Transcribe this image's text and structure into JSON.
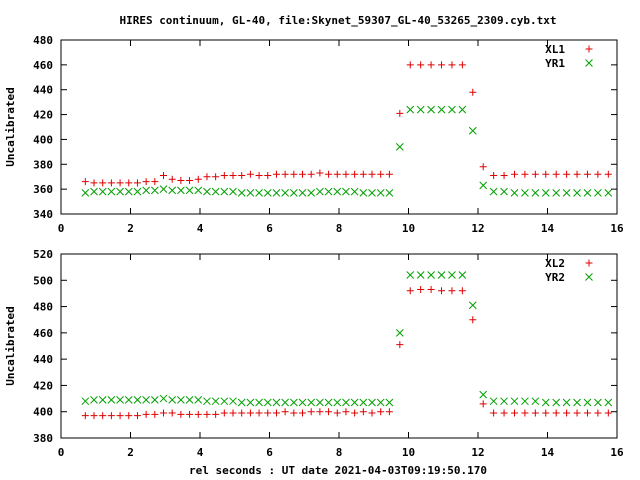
{
  "title": "HIRES continuum, GL-40, file:Skynet_59307_GL-40_53265_2309.cyb.txt",
  "xlabel": "rel seconds : UT date 2021-04-03T09:19:50.170",
  "colors": {
    "series1": "#e00000",
    "series2": "#00a000"
  },
  "chart_data": [
    {
      "type": "scatter",
      "ylabel": "Uncalibrated",
      "xlim": [
        0,
        16
      ],
      "ylim": [
        340,
        480
      ],
      "xticks": [
        0,
        2,
        4,
        6,
        8,
        10,
        12,
        14,
        16
      ],
      "yticks": [
        340,
        360,
        380,
        400,
        420,
        440,
        460,
        480
      ],
      "legend_position": "top-right",
      "x": [
        0.7,
        0.95,
        1.2,
        1.45,
        1.7,
        1.95,
        2.2,
        2.45,
        2.7,
        2.95,
        3.2,
        3.45,
        3.7,
        3.95,
        4.2,
        4.45,
        4.7,
        4.95,
        5.2,
        5.45,
        5.7,
        5.95,
        6.2,
        6.45,
        6.7,
        6.95,
        7.2,
        7.45,
        7.7,
        7.95,
        8.2,
        8.45,
        8.7,
        8.95,
        9.2,
        9.45,
        9.75,
        10.05,
        10.35,
        10.65,
        10.95,
        11.25,
        11.55,
        11.85,
        12.15,
        12.45,
        12.75,
        13.05,
        13.35,
        13.65,
        13.95,
        14.25,
        14.55,
        14.85,
        15.15,
        15.45,
        15.75
      ],
      "series": [
        {
          "name": "XL1",
          "marker": "plus",
          "values": [
            366,
            365,
            365,
            365,
            365,
            365,
            365,
            366,
            366,
            371,
            368,
            367,
            367,
            368,
            370,
            370,
            371,
            371,
            371,
            372,
            371,
            371,
            372,
            372,
            372,
            372,
            372,
            373,
            372,
            372,
            372,
            372,
            372,
            372,
            372,
            372,
            421,
            460,
            460,
            460,
            460,
            460,
            460,
            438,
            378,
            371,
            371,
            372,
            372,
            372,
            372,
            372,
            372,
            372,
            372,
            372,
            372
          ]
        },
        {
          "name": "YR1",
          "marker": "cross",
          "values": [
            357,
            358,
            358,
            358,
            358,
            358,
            358,
            359,
            359,
            360,
            359,
            359,
            359,
            359,
            358,
            358,
            358,
            358,
            357,
            357,
            357,
            357,
            357,
            357,
            357,
            357,
            357,
            358,
            358,
            358,
            358,
            358,
            357,
            357,
            357,
            357,
            394,
            424,
            424,
            424,
            424,
            424,
            424,
            407,
            363,
            358,
            358,
            357,
            357,
            357,
            357,
            357,
            357,
            357,
            357,
            357,
            357
          ]
        }
      ]
    },
    {
      "type": "scatter",
      "ylabel": "Uncalibrated",
      "xlim": [
        0,
        16
      ],
      "ylim": [
        380,
        520
      ],
      "xticks": [
        0,
        2,
        4,
        6,
        8,
        10,
        12,
        14,
        16
      ],
      "yticks": [
        380,
        400,
        420,
        440,
        460,
        480,
        500,
        520
      ],
      "legend_position": "top-right",
      "x": [
        0.7,
        0.95,
        1.2,
        1.45,
        1.7,
        1.95,
        2.2,
        2.45,
        2.7,
        2.95,
        3.2,
        3.45,
        3.7,
        3.95,
        4.2,
        4.45,
        4.7,
        4.95,
        5.2,
        5.45,
        5.7,
        5.95,
        6.2,
        6.45,
        6.7,
        6.95,
        7.2,
        7.45,
        7.7,
        7.95,
        8.2,
        8.45,
        8.7,
        8.95,
        9.2,
        9.45,
        9.75,
        10.05,
        10.35,
        10.65,
        10.95,
        11.25,
        11.55,
        11.85,
        12.15,
        12.45,
        12.75,
        13.05,
        13.35,
        13.65,
        13.95,
        14.25,
        14.55,
        14.85,
        15.15,
        15.45,
        15.75
      ],
      "series": [
        {
          "name": "XL2",
          "marker": "plus",
          "values": [
            397,
            397,
            397,
            397,
            397,
            397,
            397,
            398,
            398,
            399,
            399,
            398,
            398,
            398,
            398,
            398,
            399,
            399,
            399,
            399,
            399,
            399,
            399,
            400,
            399,
            399,
            400,
            400,
            400,
            399,
            400,
            399,
            400,
            399,
            400,
            400,
            451,
            492,
            493,
            493,
            492,
            492,
            492,
            470,
            406,
            399,
            399,
            399,
            399,
            399,
            399,
            399,
            399,
            399,
            399,
            399,
            399
          ]
        },
        {
          "name": "YR2",
          "marker": "cross",
          "values": [
            408,
            409,
            409,
            409,
            409,
            409,
            409,
            409,
            409,
            410,
            409,
            409,
            409,
            409,
            408,
            408,
            408,
            408,
            407,
            407,
            407,
            407,
            407,
            407,
            407,
            407,
            407,
            407,
            407,
            407,
            407,
            407,
            407,
            407,
            407,
            407,
            460,
            504,
            504,
            504,
            504,
            504,
            504,
            481,
            413,
            408,
            408,
            408,
            408,
            408,
            407,
            407,
            407,
            407,
            407,
            407,
            407
          ]
        }
      ]
    }
  ]
}
